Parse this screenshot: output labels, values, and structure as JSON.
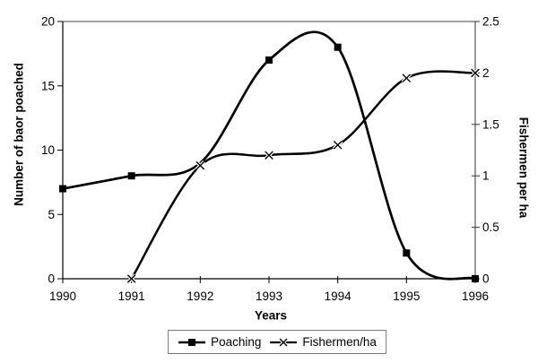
{
  "chart_data": {
    "type": "line",
    "categories": [
      "1990",
      "1991",
      "1992",
      "1993",
      "1994",
      "1995",
      "1996"
    ],
    "xlabel": "Years",
    "ylabel_left": "Number of baor poached",
    "ylabel_right": "Fishermen per ha",
    "ylim_left": [
      0,
      20
    ],
    "ylim_right": [
      0,
      2.5
    ],
    "yticks_left": [
      0,
      5,
      10,
      15,
      20
    ],
    "yticks_right": [
      0,
      0.5,
      1,
      1.5,
      2,
      2.5
    ],
    "grid": false,
    "smooth_lines": true,
    "legend_position": "bottom",
    "line_color": "#000000",
    "series": [
      {
        "name": "Poaching",
        "axis": "left",
        "marker": "square",
        "values": [
          7,
          8,
          9,
          17,
          18,
          2,
          0
        ],
        "hidden_marker_indices": [
          2
        ]
      },
      {
        "name": "Fishermen/ha",
        "axis": "right",
        "marker": "x",
        "values": [
          null,
          0,
          1.1,
          1.2,
          1.3,
          1.95,
          2.0
        ],
        "hidden_marker_indices": []
      }
    ]
  }
}
